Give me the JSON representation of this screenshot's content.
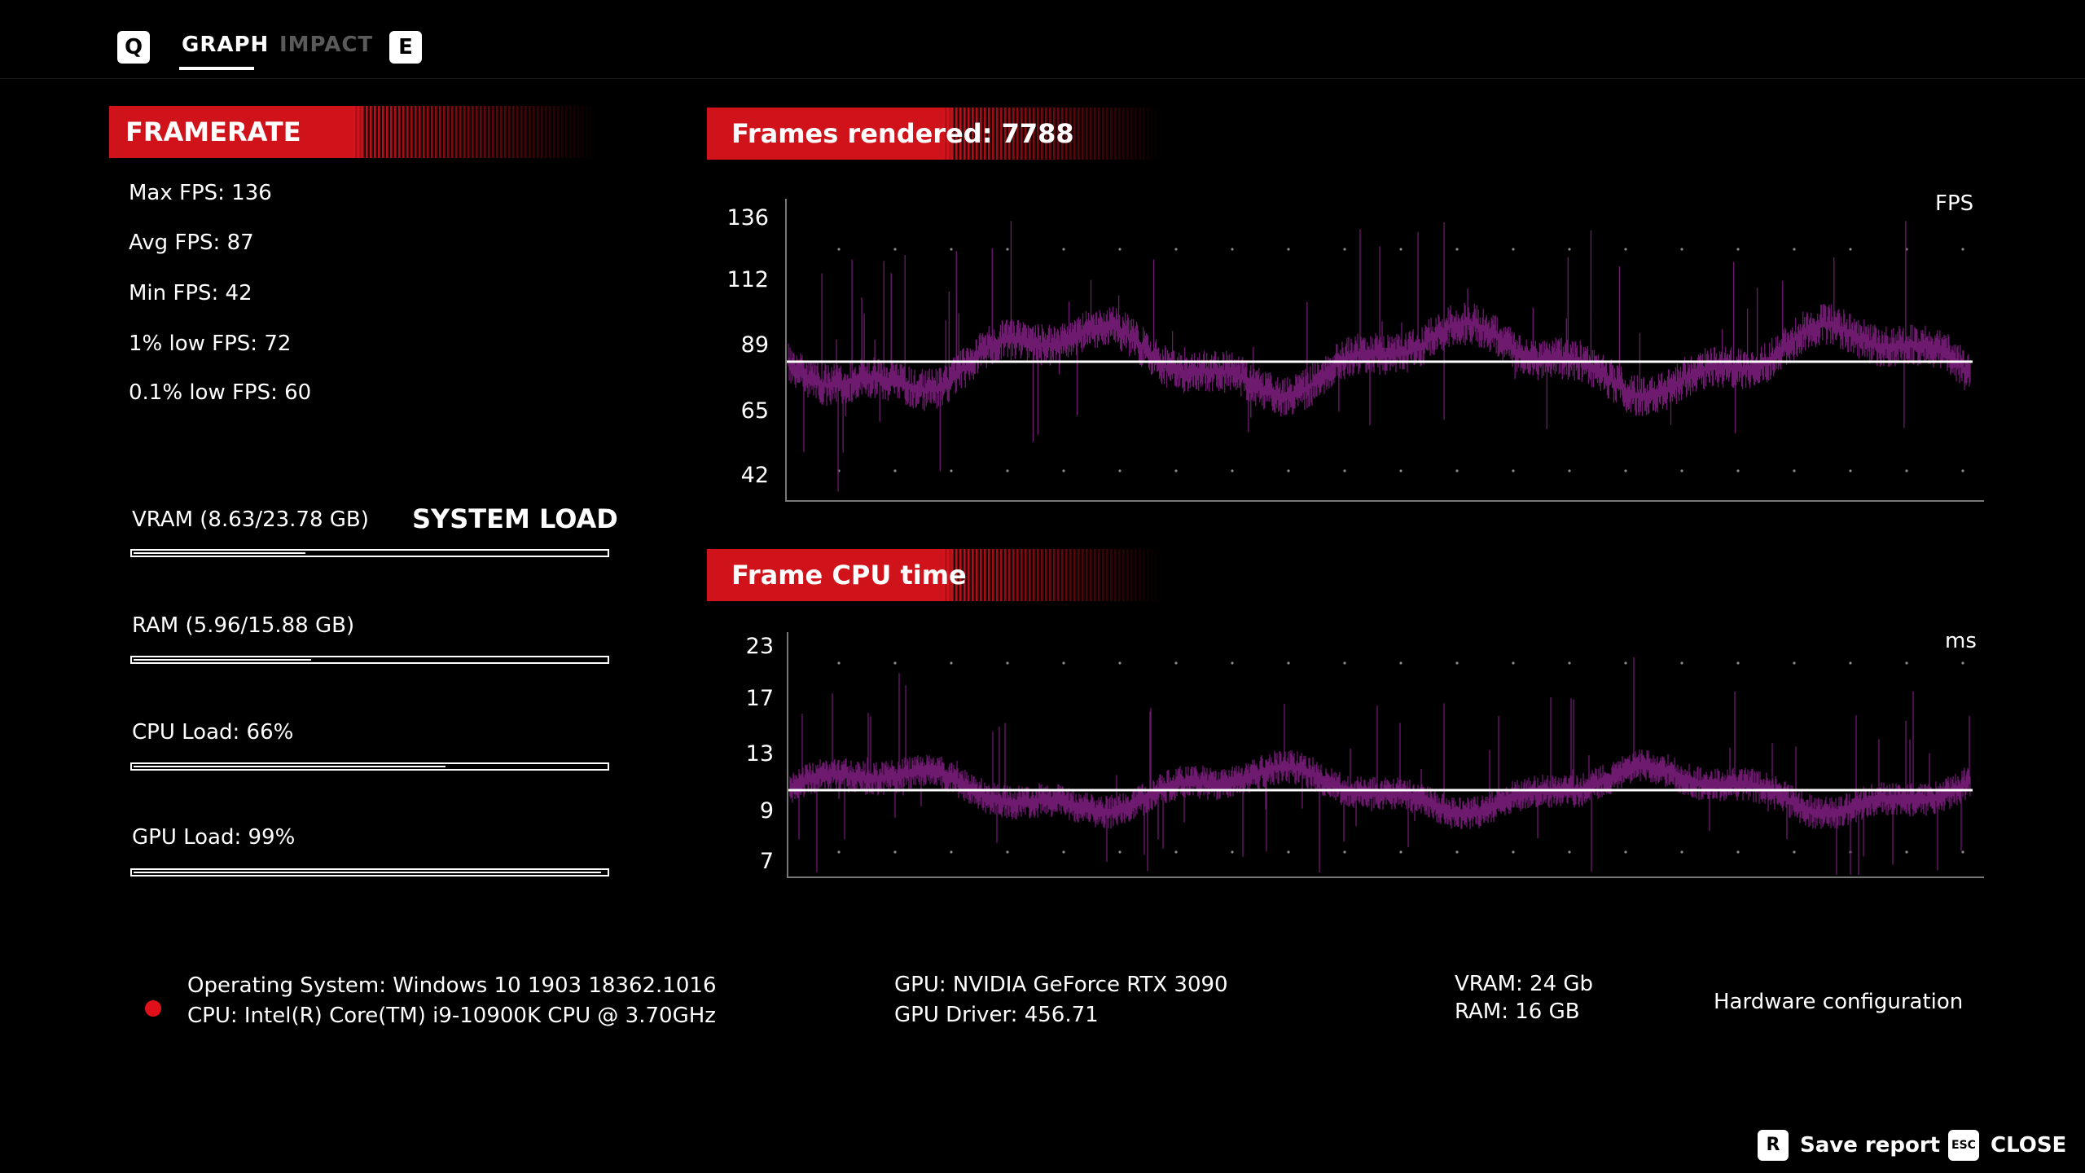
{
  "tabs": {
    "prev_key": "Q",
    "next_key": "E",
    "items": [
      {
        "label": "GRAPH",
        "active": true
      },
      {
        "label": "IMPACT",
        "active": false
      }
    ]
  },
  "framerate": {
    "title": "FRAMERATE",
    "stats": [
      "Max FPS: 136",
      "Avg FPS: 87",
      "Min FPS: 42",
      "1% low FPS: 72",
      "0.1% low FPS: 60"
    ]
  },
  "system_load": {
    "title": "SYSTEM LOAD",
    "items": [
      {
        "label": "VRAM (8.63/23.78 GB)",
        "fraction": 0.363
      },
      {
        "label": "RAM (5.96/15.88 GB)",
        "fraction": 0.375
      },
      {
        "label": "CPU Load: 66%",
        "fraction": 0.66
      },
      {
        "label": "GPU Load: 99%",
        "fraction": 0.99
      }
    ]
  },
  "fps_graph": {
    "title": "Frames rendered: 7788",
    "unit": "FPS",
    "y_ticks": [
      "136",
      "112",
      "89",
      "65",
      "42"
    ],
    "avg_value": 87,
    "color": "#6e1a6e"
  },
  "cpu_graph": {
    "title": "Frame CPU time",
    "unit": "ms",
    "y_ticks": [
      "23",
      "17",
      "13",
      "9",
      "7"
    ],
    "avg_value": 11,
    "color": "#6e1a6e"
  },
  "hardware": {
    "os": "Operating System: Windows 10 1903 18362.1016",
    "cpu": "CPU: Intel(R) Core(TM) i9-10900K CPU @ 3.70GHz",
    "gpu": "GPU: NVIDIA GeForce RTX 3090",
    "gpu_driver": "GPU Driver: 456.71",
    "vram": "VRAM: 24 Gb",
    "ram": "RAM: 16 GB",
    "title": "Hardware configuration",
    "status_color": "#e0101a"
  },
  "footer": {
    "save_key": "R",
    "save_label": "Save report",
    "close_key": "ESC",
    "close_label": "CLOSE"
  },
  "accent_color": "#d0121a"
}
